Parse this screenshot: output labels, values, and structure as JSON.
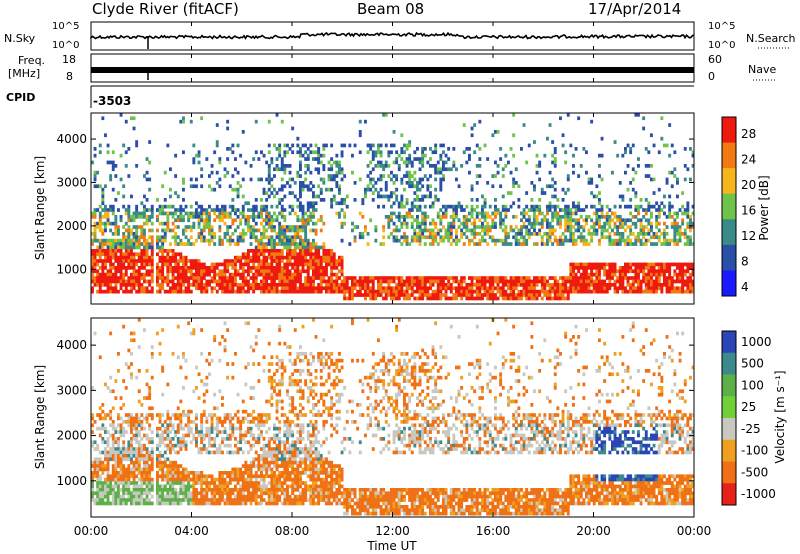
{
  "header": {
    "station": "Clyde River (fitACF)",
    "beam": "Beam 08",
    "date": "17/Apr/2014"
  },
  "strip_panels": {
    "nsky_label": "N.Sky",
    "nsearch_label": "N.Search",
    "noise_ticks": [
      "10^5",
      "10^0"
    ],
    "freq_label_line1": "Freq.",
    "freq_label_line2": "[MHz]",
    "freq_ticks": [
      "18",
      "8"
    ],
    "nave_label": "Nave",
    "nave_ticks": [
      "60",
      "0"
    ],
    "cpid_label": "CPID",
    "cpid_value": "-3503"
  },
  "chart_data": [
    {
      "type": "heatmap",
      "quantity": "power",
      "ylabel": "Slant Range [km]",
      "yticks": [
        1000,
        2000,
        3000,
        4000
      ],
      "ylim": [
        200,
        4600
      ],
      "colorbar_label": "Power [dB]",
      "colorbar_ticks": [
        4,
        8,
        12,
        16,
        20,
        24,
        28
      ],
      "colorbar_colors": [
        "#1a1aff",
        "#2a4fa8",
        "#3a8a88",
        "#6fc24a",
        "#f5b51b",
        "#f27a12",
        "#ee1a10"
      ]
    },
    {
      "type": "heatmap",
      "quantity": "velocity",
      "ylabel": "Slant Range [km]",
      "yticks": [
        1000,
        2000,
        3000,
        4000
      ],
      "ylim": [
        200,
        4600
      ],
      "colorbar_label": "Velocity [m s⁻¹]",
      "colorbar_ticks": [
        "1000",
        "500",
        "100",
        "25",
        "-25",
        "-100",
        "-500",
        "-1000"
      ],
      "colorbar_colors": [
        "#2a45b5",
        "#3c8a8e",
        "#5db048",
        "#6fd03a",
        "#c8c8c0",
        "#f0a020",
        "#f07015",
        "#e8201a"
      ]
    }
  ],
  "xaxis": {
    "ticks": [
      "00:00",
      "04:00",
      "08:00",
      "12:00",
      "16:00",
      "20:00",
      "00:00"
    ],
    "label": "Time UT"
  }
}
